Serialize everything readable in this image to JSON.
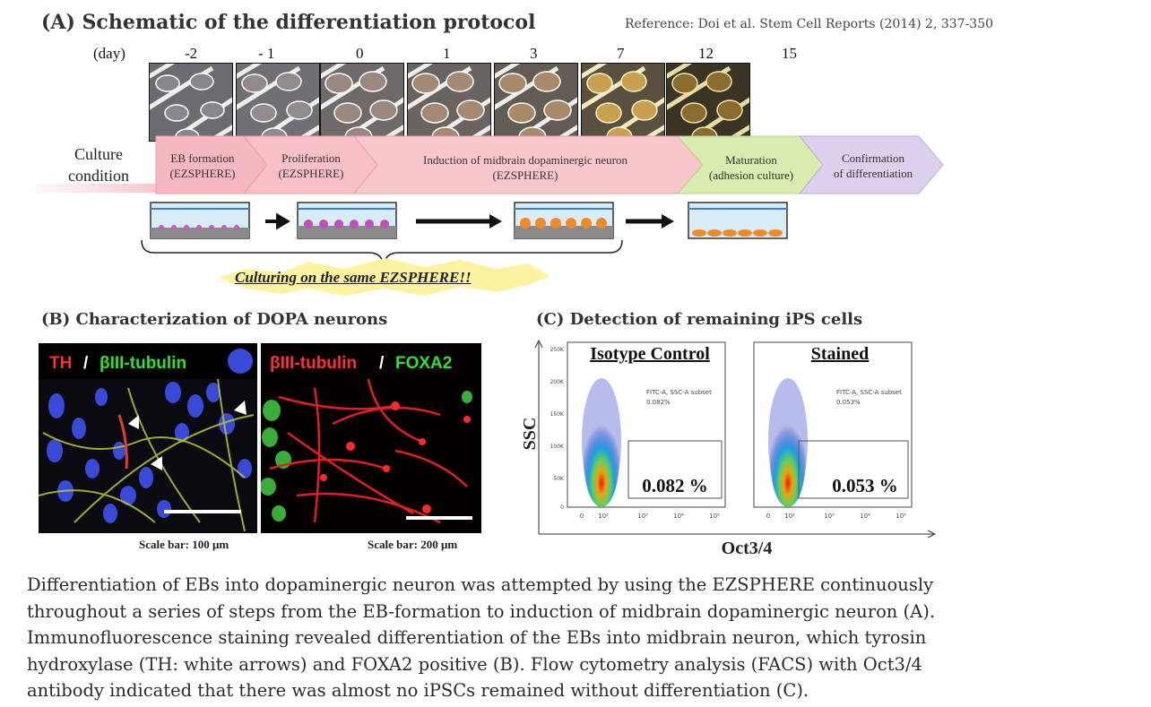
{
  "panel_a": {
    "title": "(A) Schematic of the differentiation protocol",
    "reference": "Reference: Doi et al. Stem Cell Reports (2014) 2, 337-350",
    "day_label": "(day)",
    "days": [
      "-2",
      "- 1",
      "0",
      "1",
      "3",
      "7",
      "12",
      "15"
    ],
    "culture_label_line1": "Culture",
    "culture_label_line2": "condition",
    "stages": [
      {
        "line1": "EB formation",
        "line2": "(EZSPHERE)",
        "color": "#f6b8c0"
      },
      {
        "line1": "Proliferation",
        "line2": "(EZSPHERE)",
        "color": "#f6b8c0"
      },
      {
        "line1": "Induction of midbrain dopaminergic neuron",
        "line2": "(EZSPHERE)",
        "color": "#f8c7cc"
      },
      {
        "line1": "Maturation",
        "line2": "(adhesion culture)",
        "color": "#d9ecb0"
      },
      {
        "line1": "Confirmation",
        "line2": "of differentiation",
        "color": "#ddd0ec"
      }
    ],
    "slogan": "Culturing on the same EZSPHERE!!"
  },
  "panel_b": {
    "title": "(B) Characterization of DOPA neurons",
    "left_image": {
      "label_a": "TH",
      "separator": " / ",
      "label_b": "βIII-tubulin",
      "scale_bar": "Scale bar: 100 μm"
    },
    "right_image": {
      "label_a": "βIII-tubulin",
      "separator": " / ",
      "label_b": "FOXA2",
      "scale_bar": "Scale bar: 200 μm"
    }
  },
  "panel_c": {
    "title": "(C) Detection of remaining iPS cells",
    "y_axis_label": "SSC",
    "x_axis_label": "Oct3/4",
    "y_ticks": [
      "250K",
      "200K",
      "150K",
      "100K",
      "50K",
      "0"
    ],
    "x_ticks": [
      "0",
      "10²",
      "10³",
      "10⁴",
      "10⁵"
    ],
    "gate_label_line1": "FITC-A, SSC-A subset",
    "plots": [
      {
        "title": "Isotype Control",
        "gate_value_small": "0.082%",
        "gate_value": "0.082 %"
      },
      {
        "title": "Stained",
        "gate_value_small": "0.053%",
        "gate_value": "0.053 %"
      }
    ]
  },
  "caption": [
    "Differentiation of EBs into dopaminergic neuron was attempted by using the EZSPHERE continuously",
    "throughout a series of steps from the EB-formation to induction of midbrain dopaminergic neuron (A).",
    "Immunofluorescence staining revealed differentiation of the EBs into midbrain neuron, which tyrosin",
    "hydroxylase (TH: white arrows) and FOXA2 positive (B). Flow cytometry analysis (FACS) with Oct3/4",
    "antibody indicated that there was almost no iPSCs remained without differentiation (C)."
  ]
}
